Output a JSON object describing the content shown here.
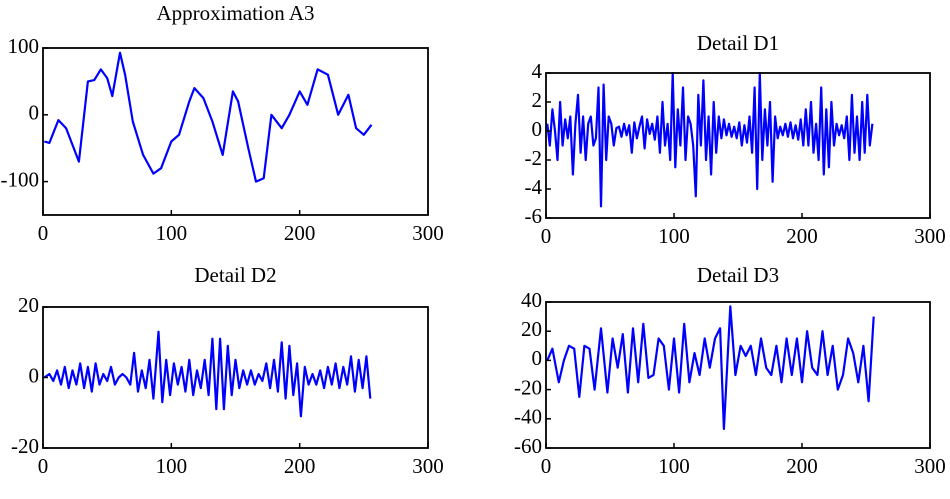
{
  "chart_data": [
    {
      "type": "line",
      "title": "Approximation A3",
      "x": [
        1,
        5,
        12,
        18,
        22,
        28,
        35,
        40,
        45,
        50,
        54,
        60,
        64,
        70,
        78,
        86,
        92,
        100,
        106,
        114,
        118,
        125,
        132,
        140,
        148,
        152,
        160,
        166,
        172,
        178,
        186,
        192,
        200,
        206,
        214,
        222,
        230,
        238,
        244,
        250,
        256
      ],
      "series": [
        {
          "name": "A3",
          "color": "#0000ff",
          "values": [
            -40,
            -42,
            -8,
            -20,
            -40,
            -70,
            50,
            52,
            68,
            55,
            28,
            93,
            60,
            -10,
            -60,
            -88,
            -80,
            -40,
            -30,
            20,
            40,
            25,
            -10,
            -60,
            35,
            20,
            -50,
            -100,
            -95,
            0,
            -20,
            0,
            35,
            15,
            68,
            60,
            0,
            30,
            -20,
            -30,
            -15
          ]
        }
      ],
      "xlim": [
        0,
        300
      ],
      "xticks": [
        0,
        100,
        200,
        300
      ],
      "ylim": [
        -150,
        100
      ],
      "yticks": [
        -100,
        0,
        100
      ]
    },
    {
      "type": "line",
      "title": "Detail D1",
      "x": [
        1,
        3,
        5,
        7,
        9,
        11,
        13,
        15,
        17,
        19,
        21,
        23,
        25,
        27,
        29,
        31,
        33,
        35,
        37,
        39,
        41,
        43,
        45,
        47,
        49,
        51,
        53,
        55,
        57,
        59,
        61,
        63,
        65,
        67,
        69,
        71,
        73,
        75,
        77,
        79,
        81,
        83,
        85,
        87,
        89,
        91,
        93,
        95,
        97,
        99,
        101,
        103,
        105,
        107,
        109,
        111,
        113,
        115,
        117,
        119,
        121,
        123,
        125,
        127,
        129,
        131,
        133,
        135,
        137,
        139,
        141,
        143,
        145,
        147,
        149,
        151,
        153,
        155,
        157,
        159,
        161,
        163,
        165,
        167,
        169,
        171,
        173,
        175,
        177,
        179,
        181,
        183,
        185,
        187,
        189,
        191,
        193,
        195,
        197,
        199,
        201,
        203,
        205,
        207,
        209,
        211,
        213,
        215,
        217,
        219,
        221,
        223,
        225,
        227,
        229,
        231,
        233,
        235,
        237,
        239,
        241,
        243,
        245,
        247,
        249,
        251,
        253,
        255
      ],
      "series": [
        {
          "name": "D1",
          "color": "#0000ff",
          "values": [
            0.5,
            -1,
            1.5,
            0,
            -2,
            2,
            -1,
            0.8,
            -0.5,
            1,
            -3,
            0.5,
            2.5,
            -1.5,
            1,
            -2,
            0.5,
            1,
            -1,
            -0.5,
            3,
            -5.2,
            3.2,
            -2,
            1,
            0.5,
            -1,
            0.2,
            0.3,
            -0.4,
            0.5,
            -0.3,
            0.4,
            -1.5,
            0.6,
            -0.5,
            0.3,
            1,
            -1.2,
            0.8,
            -0.2,
            0.5,
            -0.6,
            1,
            -1.5,
            2,
            -1,
            0.5,
            -2,
            4,
            -2.5,
            1.5,
            -1,
            3,
            -2,
            1,
            0.5,
            -1,
            -4.5,
            2.5,
            -1,
            3.5,
            -2,
            1,
            -3,
            2,
            -1.5,
            1,
            -0.5,
            0.8,
            -0.3,
            0.5,
            -0.4,
            0.3,
            -0.5,
            0.6,
            -1,
            0.4,
            -0.8,
            1,
            -1.5,
            3,
            -4,
            4,
            -2,
            1.5,
            -1,
            2,
            -3.5,
            1,
            -0.5,
            0.3,
            -0.3,
            0.5,
            -0.4,
            0.6,
            -0.5,
            0.4,
            -0.6,
            0.8,
            -1,
            1.5,
            -1,
            2,
            -1.5,
            0.5,
            -2,
            3,
            -3,
            1.5,
            -2.5,
            2,
            -1,
            0.5,
            -0.3,
            0.4,
            -0.5,
            1,
            -2,
            2.5,
            -1.5,
            1,
            -2,
            2,
            -1.5,
            2.5,
            -1,
            0.5
          ]
        }
      ],
      "xlim": [
        0,
        300
      ],
      "xticks": [
        0,
        100,
        200,
        300
      ],
      "ylim": [
        -6,
        4
      ],
      "yticks": [
        -6,
        -4,
        -2,
        0,
        2,
        4
      ]
    },
    {
      "type": "line",
      "title": "Detail D2",
      "x": [
        1,
        5,
        8,
        11,
        14,
        17,
        20,
        23,
        26,
        29,
        32,
        35,
        38,
        41,
        44,
        47,
        50,
        53,
        56,
        59,
        62,
        65,
        68,
        71,
        74,
        77,
        80,
        83,
        86,
        90,
        93,
        96,
        99,
        102,
        105,
        108,
        111,
        114,
        117,
        120,
        123,
        126,
        129,
        132,
        135,
        138,
        141,
        144,
        147,
        150,
        153,
        156,
        159,
        162,
        165,
        168,
        171,
        174,
        177,
        180,
        183,
        186,
        189,
        192,
        195,
        198,
        201,
        204,
        207,
        210,
        213,
        216,
        219,
        222,
        225,
        228,
        231,
        234,
        237,
        240,
        243,
        246,
        249,
        252,
        255
      ],
      "series": [
        {
          "name": "D2",
          "color": "#0000ff",
          "values": [
            0,
            1,
            -1,
            2,
            -2,
            3,
            -3,
            2,
            -2,
            4,
            -3,
            3,
            -4,
            4,
            -2,
            1,
            -1,
            3,
            -2,
            0,
            1,
            0,
            -2,
            7,
            -4,
            2,
            -3,
            5,
            -6,
            13,
            -7,
            5,
            -5,
            4,
            -2,
            3,
            -4,
            5,
            -5,
            2,
            -3,
            5,
            -5,
            11,
            -9,
            11,
            -9,
            9,
            -5,
            5,
            -3,
            2,
            -2,
            2,
            -2,
            1,
            -1,
            4,
            -3,
            5,
            -4,
            10,
            -6,
            9,
            -5,
            4,
            -11,
            3,
            -2,
            1,
            -2,
            2,
            -3,
            3,
            -2,
            4,
            -3,
            3,
            -2,
            6,
            -4,
            5,
            -3,
            6,
            -6
          ]
        }
      ],
      "xlim": [
        0,
        300
      ],
      "xticks": [
        0,
        100,
        200,
        300
      ],
      "ylim": [
        -20,
        20
      ],
      "yticks": [
        -20,
        0,
        20
      ]
    },
    {
      "type": "line",
      "title": "Detail D3",
      "x": [
        1,
        5,
        10,
        14,
        18,
        22,
        26,
        30,
        34,
        38,
        43,
        48,
        52,
        56,
        60,
        64,
        68,
        72,
        76,
        80,
        84,
        88,
        92,
        96,
        100,
        104,
        108,
        112,
        116,
        120,
        124,
        128,
        132,
        136,
        139,
        144,
        148,
        152,
        156,
        160,
        164,
        168,
        172,
        176,
        180,
        184,
        188,
        192,
        196,
        200,
        204,
        208,
        212,
        216,
        220,
        224,
        228,
        232,
        236,
        240,
        244,
        248,
        252,
        256
      ],
      "series": [
        {
          "name": "D3",
          "color": "#0000ff",
          "values": [
            0,
            8,
            -15,
            0,
            10,
            8,
            -25,
            10,
            8,
            -20,
            22,
            -22,
            15,
            -5,
            18,
            -22,
            22,
            -15,
            25,
            -12,
            -10,
            15,
            10,
            -20,
            15,
            -22,
            25,
            -15,
            5,
            -10,
            15,
            -5,
            15,
            22,
            -47,
            37,
            -10,
            10,
            3,
            10,
            -10,
            15,
            -5,
            -10,
            10,
            -15,
            15,
            -10,
            15,
            -15,
            20,
            -5,
            -10,
            20,
            -10,
            10,
            -20,
            -10,
            15,
            5,
            -15,
            10,
            -28,
            30
          ]
        }
      ],
      "xlim": [
        0,
        300
      ],
      "xticks": [
        0,
        100,
        200,
        300
      ],
      "ylim": [
        -60,
        40
      ],
      "yticks": [
        -60,
        -40,
        -20,
        0,
        20,
        40
      ]
    }
  ]
}
